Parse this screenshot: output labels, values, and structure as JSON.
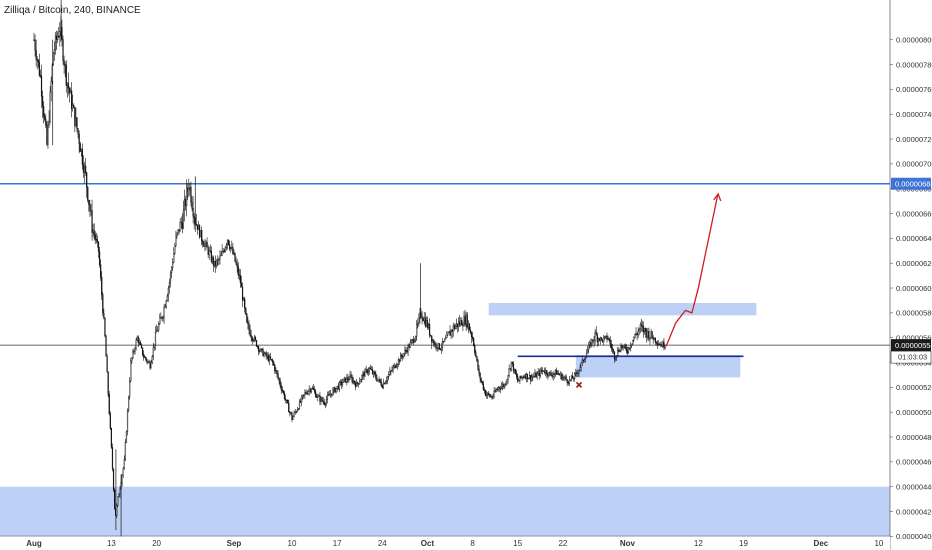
{
  "header": {
    "title": "Zilliqa / Bitcoin, 240, BINANCE"
  },
  "colors": {
    "candle": "#111111",
    "zone": "#b9cff5",
    "resistance_line": "#3b73d6",
    "support_line": "#1d2c96",
    "arrow": "#d01c1c",
    "marker": "#8b1e1e",
    "axis": "#555555",
    "price_tag": "#3b73d6",
    "current_tag": "#1b1b1b"
  },
  "chart_data": {
    "type": "candlestick",
    "x_axis": {
      "ticks": [
        {
          "label": "Aug",
          "day": 1,
          "bold": true
        },
        {
          "label": "13",
          "day": 13
        },
        {
          "label": "20",
          "day": 20
        },
        {
          "label": "Sep",
          "day": 32,
          "bold": true
        },
        {
          "label": "10",
          "day": 41
        },
        {
          "label": "17",
          "day": 48
        },
        {
          "label": "24",
          "day": 55
        },
        {
          "label": "Oct",
          "day": 62,
          "bold": true
        },
        {
          "label": "8",
          "day": 69
        },
        {
          "label": "15",
          "day": 76
        },
        {
          "label": "22",
          "day": 83
        },
        {
          "label": "Nov",
          "day": 93,
          "bold": true
        },
        {
          "label": "12",
          "day": 104
        },
        {
          "label": "19",
          "day": 111
        },
        {
          "label": "Dec",
          "day": 123,
          "bold": true
        },
        {
          "label": "10",
          "day": 132
        }
      ]
    },
    "y_axis": {
      "range": [
        3.89e-06,
        8.32e-06
      ],
      "ticks": [
        "0.00000800",
        "0.00000780",
        "0.00000760",
        "0.00000740",
        "0.00000720",
        "0.00000700",
        "0.00000680",
        "0.00000660",
        "0.00000640",
        "0.00000620",
        "0.00000600",
        "0.00000580",
        "0.00000560",
        "0.00000540",
        "0.00000520",
        "0.00000500",
        "0.00000480",
        "0.00000460",
        "0.00000440",
        "0.00000420",
        "0.00000400"
      ]
    },
    "price_path": [
      [
        1,
        800
      ],
      [
        2,
        770
      ],
      [
        3,
        715
      ],
      [
        4,
        790
      ],
      [
        5,
        810
      ],
      [
        6,
        770
      ],
      [
        7,
        745
      ],
      [
        8,
        720
      ],
      [
        9,
        690
      ],
      [
        10,
        650
      ],
      [
        11,
        630
      ],
      [
        12,
        560
      ],
      [
        13,
        470
      ],
      [
        13.6,
        415
      ],
      [
        14,
        430
      ],
      [
        15,
        460
      ],
      [
        16,
        540
      ],
      [
        17,
        560
      ],
      [
        18,
        545
      ],
      [
        19,
        538
      ],
      [
        20,
        565
      ],
      [
        21,
        580
      ],
      [
        22,
        605
      ],
      [
        23,
        640
      ],
      [
        24,
        655
      ],
      [
        25,
        685
      ],
      [
        26,
        655
      ],
      [
        27,
        640
      ],
      [
        28,
        630
      ],
      [
        29,
        618
      ],
      [
        30,
        625
      ],
      [
        31,
        640
      ],
      [
        32,
        625
      ],
      [
        33,
        605
      ],
      [
        34,
        570
      ],
      [
        35,
        560
      ],
      [
        36,
        550
      ],
      [
        37,
        545
      ],
      [
        38,
        540
      ],
      [
        39,
        525
      ],
      [
        40,
        510
      ],
      [
        41,
        495
      ],
      [
        42,
        505
      ],
      [
        43,
        515
      ],
      [
        44,
        520
      ],
      [
        45,
        512
      ],
      [
        46,
        508
      ],
      [
        47,
        515
      ],
      [
        48,
        520
      ],
      [
        49,
        525
      ],
      [
        50,
        528
      ],
      [
        51,
        522
      ],
      [
        52,
        530
      ],
      [
        53,
        535
      ],
      [
        54,
        528
      ],
      [
        55,
        522
      ],
      [
        56,
        530
      ],
      [
        57,
        538
      ],
      [
        58,
        545
      ],
      [
        59,
        552
      ],
      [
        60,
        560
      ],
      [
        61,
        580
      ],
      [
        62,
        570
      ],
      [
        63,
        555
      ],
      [
        64,
        552
      ],
      [
        65,
        560
      ],
      [
        66,
        568
      ],
      [
        67,
        572
      ],
      [
        68,
        575
      ],
      [
        69,
        560
      ],
      [
        70,
        530
      ],
      [
        71,
        515
      ],
      [
        72,
        512
      ],
      [
        73,
        520
      ],
      [
        74,
        522
      ],
      [
        75,
        540
      ],
      [
        76,
        525
      ],
      [
        77,
        530
      ],
      [
        78,
        528
      ],
      [
        79,
        530
      ],
      [
        80,
        534
      ],
      [
        81,
        530
      ],
      [
        82,
        532
      ],
      [
        83,
        528
      ],
      [
        84,
        525
      ],
      [
        85,
        530
      ],
      [
        86,
        540
      ],
      [
        87,
        552
      ],
      [
        88,
        562
      ],
      [
        89,
        558
      ],
      [
        90,
        560
      ],
      [
        91,
        545
      ],
      [
        92,
        553
      ],
      [
        93,
        550
      ],
      [
        94,
        560
      ],
      [
        95,
        568
      ],
      [
        96,
        564
      ],
      [
        97,
        560
      ],
      [
        98,
        555
      ],
      [
        99,
        554
      ]
    ],
    "last_price": "0.00000554",
    "countdown": "01:03:03",
    "horizontal_line": {
      "price": 6.84e-06,
      "label": "0.00000684"
    },
    "current_price_line": {
      "price": 5.54e-06
    },
    "zones": [
      {
        "name": "upper-supply",
        "day_from": 71.5,
        "day_to": 113,
        "price_from": 5.78e-06,
        "price_to": 5.88e-06
      },
      {
        "name": "lower-demand",
        "day_from": 85,
        "day_to": 110.5,
        "price_from": 5.28e-06,
        "price_to": 5.46e-06
      },
      {
        "name": "bottom-demand",
        "day_from": -5,
        "day_to": 140,
        "price_from": 3.89e-06,
        "price_to": 4.4e-06
      }
    ],
    "support_line": {
      "day_from": 76,
      "day_to": 111,
      "price": 5.45e-06
    },
    "arrow_path": [
      [
        99,
        553
      ],
      [
        100.5,
        572
      ],
      [
        102,
        582
      ],
      [
        103,
        580
      ],
      [
        104,
        600
      ],
      [
        105,
        625
      ],
      [
        106,
        650
      ],
      [
        107,
        675
      ]
    ],
    "x_marker": {
      "day": 85.5,
      "price": 5.22e-06
    }
  }
}
